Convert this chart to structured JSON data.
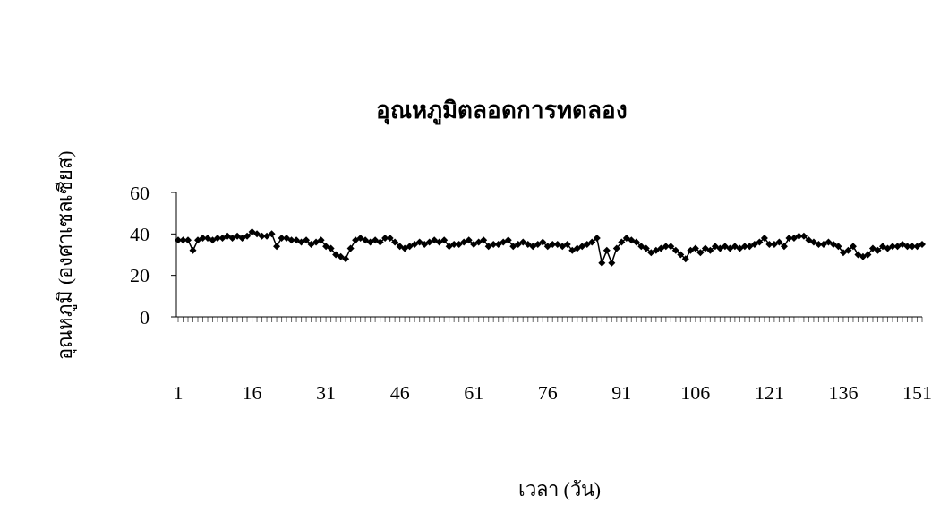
{
  "chart_data": {
    "type": "line",
    "title": "อุณหภูมิตลอดการทดลอง",
    "xlabel": "เวลา (วัน)",
    "ylabel": "อุณหภูมิ (องศาเซลเซียส)",
    "categories": [
      "1",
      null,
      null,
      null,
      null,
      null,
      null,
      null,
      null,
      null,
      null,
      null,
      null,
      null,
      null,
      "16",
      null,
      null,
      null,
      null,
      null,
      null,
      null,
      null,
      null,
      null,
      null,
      null,
      null,
      null,
      "31",
      null,
      null,
      null,
      null,
      null,
      null,
      null,
      null,
      null,
      null,
      null,
      null,
      null,
      null,
      "46",
      null,
      null,
      null,
      null,
      null,
      null,
      null,
      null,
      null,
      null,
      null,
      null,
      null,
      null,
      "61",
      null,
      null,
      null,
      null,
      null,
      null,
      null,
      null,
      null,
      null,
      null,
      null,
      null,
      null,
      "76",
      null,
      null,
      null,
      null,
      null,
      null,
      null,
      null,
      null,
      null,
      null,
      null,
      null,
      null,
      "91",
      null,
      null,
      null,
      null,
      null,
      null,
      null,
      null,
      null,
      null,
      null,
      null,
      null,
      null,
      "106",
      null,
      null,
      null,
      null,
      null,
      null,
      null,
      null,
      null,
      null,
      null,
      null,
      null,
      null,
      "121",
      null,
      null,
      null,
      null,
      null,
      null,
      null,
      null,
      null,
      null,
      null,
      null,
      null,
      null,
      "136",
      null,
      null,
      null,
      null,
      null,
      null,
      null,
      null,
      null,
      null,
      null,
      null,
      null,
      null,
      "151",
      null
    ],
    "series": [
      {
        "color": "#000000",
        "values": [
          37,
          37,
          37,
          32,
          37,
          38,
          38,
          37,
          38,
          38,
          39,
          38,
          39,
          38,
          39,
          41,
          40,
          39,
          39,
          40,
          34,
          38,
          38,
          37,
          37,
          36,
          37,
          35,
          36,
          37,
          34,
          33,
          30,
          29,
          28,
          33,
          37,
          38,
          37,
          36,
          37,
          36,
          38,
          38,
          36,
          34,
          33,
          34,
          35,
          36,
          35,
          36,
          37,
          36,
          37,
          34,
          35,
          35,
          36,
          37,
          35,
          36,
          37,
          34,
          35,
          35,
          36,
          37,
          34,
          35,
          36,
          35,
          34,
          35,
          36,
          34,
          35,
          35,
          34,
          35,
          32,
          33,
          34,
          35,
          36,
          38,
          26,
          32,
          26,
          33,
          36,
          38,
          37,
          36,
          34,
          33,
          31,
          32,
          33,
          34,
          34,
          32,
          30,
          28,
          32,
          33,
          31,
          33,
          32,
          34,
          33,
          34,
          33,
          34,
          33,
          34,
          34,
          35,
          36,
          38,
          35,
          35,
          36,
          34,
          38,
          38,
          39,
          39,
          37,
          36,
          35,
          35,
          36,
          35,
          34,
          31,
          32,
          34,
          30,
          29,
          30,
          33,
          32,
          34,
          33,
          34,
          34,
          35,
          34,
          34,
          34,
          35
        ]
      }
    ],
    "ylim": [
      0,
      60
    ],
    "yticks": [
      0,
      20,
      40,
      60
    ],
    "grid": false,
    "marker": "diamond",
    "line_style": "solid"
  }
}
